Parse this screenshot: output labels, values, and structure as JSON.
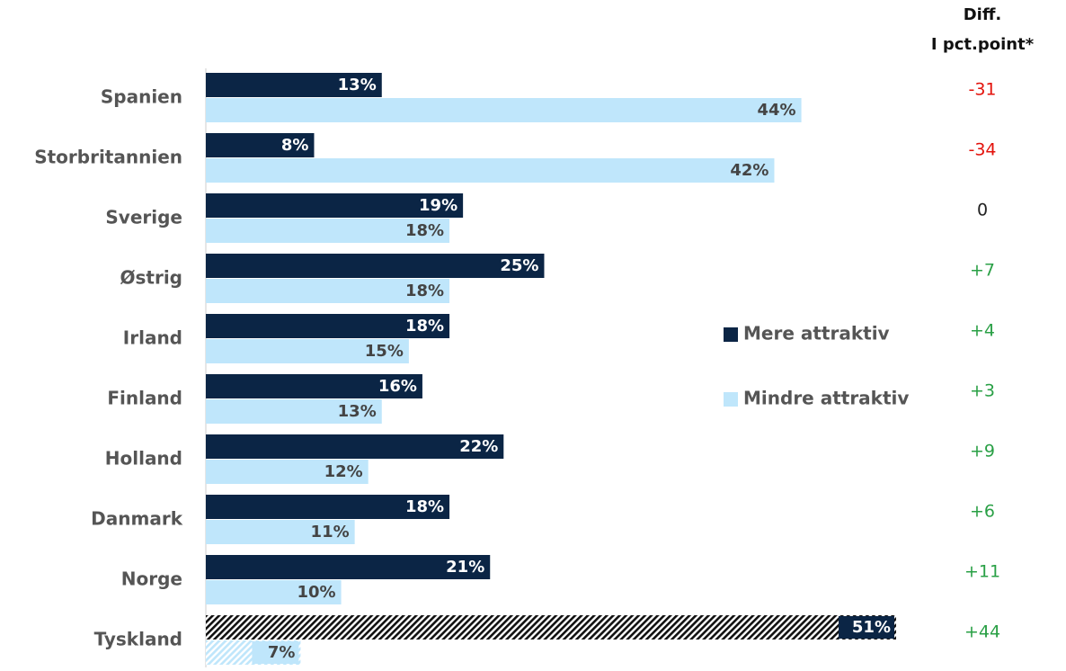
{
  "chart_data": {
    "type": "bar",
    "orientation": "horizontal",
    "categories": [
      "Spanien",
      "Storbritannien",
      "Sverige",
      "Østrig",
      "Irland",
      "Finland",
      "Holland",
      "Danmark",
      "Norge",
      "Tyskland"
    ],
    "series": [
      {
        "name": "Mere attraktiv",
        "color": "#0b2545",
        "values": [
          13,
          8,
          19,
          25,
          18,
          16,
          22,
          18,
          21,
          51
        ],
        "value_labels": [
          "13%",
          "8%",
          "19%",
          "25%",
          "18%",
          "16%",
          "22%",
          "18%",
          "21%",
          "51%"
        ]
      },
      {
        "name": "Mindre attraktiv",
        "color": "#bfe6fb",
        "values": [
          44,
          42,
          18,
          18,
          15,
          13,
          12,
          11,
          10,
          7
        ],
        "value_labels": [
          "44%",
          "42%",
          "18%",
          "18%",
          "15%",
          "13%",
          "12%",
          "11%",
          "10%",
          "7%"
        ]
      }
    ],
    "xlim": [
      0,
      51
    ],
    "hatch_last": true,
    "diff": {
      "header": [
        "Diff.",
        "I pct.point*"
      ],
      "values": [
        -31,
        -34,
        0,
        {
          "value": 7,
          "label": "+7"
        },
        {
          "value": 4,
          "label": "+4"
        },
        {
          "value": 3,
          "label": "+3"
        },
        {
          "value": 9,
          "label": "+9"
        },
        {
          "value": 6,
          "label": "+6"
        },
        {
          "value": 11,
          "label": "+11"
        },
        {
          "value": 44,
          "label": "+44"
        }
      ]
    }
  }
}
